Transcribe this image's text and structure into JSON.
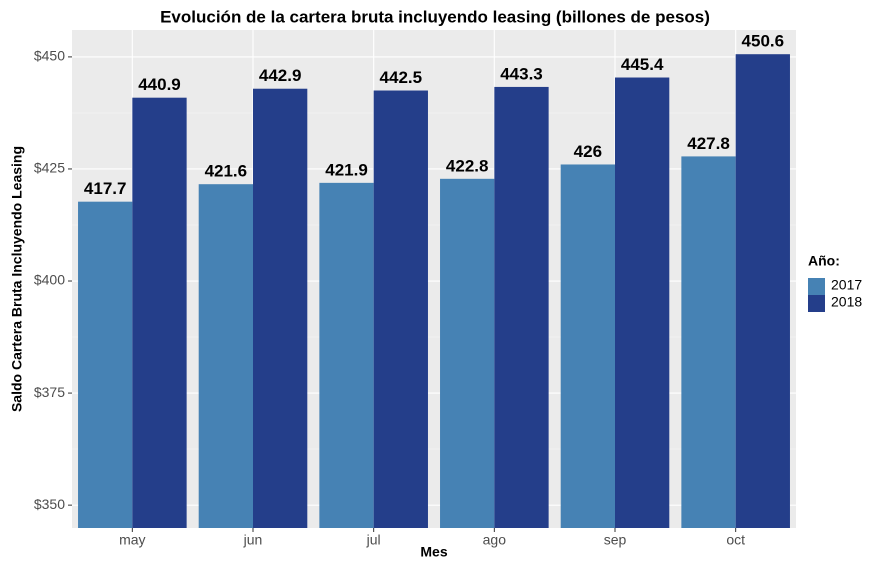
{
  "chart_data": {
    "type": "bar",
    "title": "Evolución de la cartera bruta incluyendo leasing (billones de pesos)",
    "x_label": "Mes",
    "y_label": "Saldo Cartera Bruta Incluyendo Leasing",
    "legend_title": "Año:",
    "categories": [
      "may",
      "jun",
      "jul",
      "ago",
      "sep",
      "oct"
    ],
    "series": [
      {
        "name": "2017",
        "color": "#4682b4",
        "values": [
          417.7,
          421.6,
          421.9,
          422.8,
          426,
          427.8
        ]
      },
      {
        "name": "2018",
        "color": "#243e8a",
        "values": [
          440.9,
          442.9,
          442.5,
          443.3,
          445.4,
          450.6
        ]
      }
    ],
    "ylim": [
      344.9,
      456
    ],
    "yticks": [
      {
        "value": 350,
        "label": "$350"
      },
      {
        "value": 375,
        "label": "$375"
      },
      {
        "value": 400,
        "label": "$400"
      },
      {
        "value": 425,
        "label": "$425"
      },
      {
        "value": 450,
        "label": "$450"
      }
    ],
    "grid": true,
    "legend": "right"
  }
}
